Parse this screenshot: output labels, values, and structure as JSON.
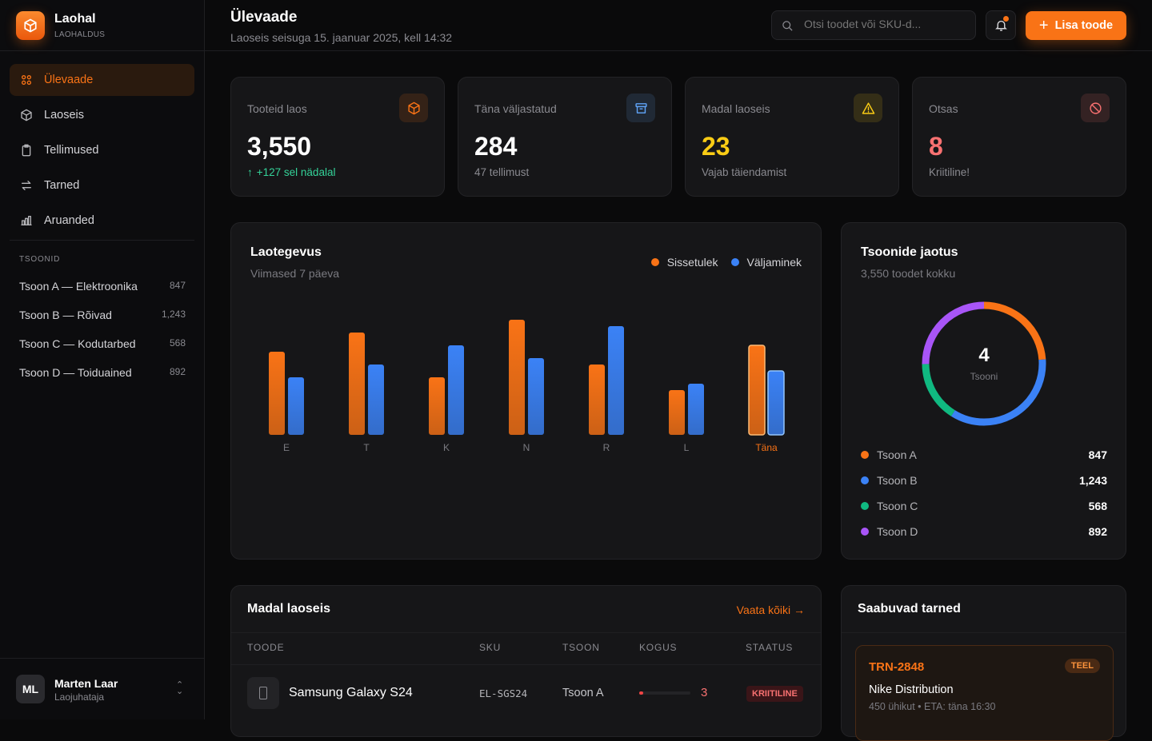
{
  "app": {
    "name": "Laohal",
    "subtitle": "LAOHALDUS"
  },
  "sidebar": {
    "nav": [
      {
        "label": "Ülevaade",
        "icon": "grid-icon",
        "active": true
      },
      {
        "label": "Laoseis",
        "icon": "box-icon"
      },
      {
        "label": "Tellimused",
        "icon": "clipboard-icon"
      },
      {
        "label": "Tarned",
        "icon": "arrows-icon"
      },
      {
        "label": "Aruanded",
        "icon": "bar-chart-icon"
      }
    ],
    "zones_title": "TSOONID",
    "zones": [
      {
        "label": "Tsoon A — Elektroonika",
        "count": "847"
      },
      {
        "label": "Tsoon B — Rõivad",
        "count": "1,243"
      },
      {
        "label": "Tsoon C — Kodutarbed",
        "count": "568"
      },
      {
        "label": "Tsoon D — Toiduained",
        "count": "892"
      }
    ],
    "user": {
      "initials": "ML",
      "name": "Marten Laar",
      "role": "Laojuhataja"
    }
  },
  "header": {
    "title": "Ülevaade",
    "subtitle": "Laoseis seisuga 15. jaanuar 2025, kell 14:32",
    "search_placeholder": "Otsi toodet või SKU-d...",
    "add_button": "Lisa toode"
  },
  "stats": [
    {
      "label": "Tooteid laos",
      "value": "3,550",
      "sub": "+127 sel nädalal",
      "color": "#ffffff",
      "sub_color": "#34d399",
      "icon": "box-icon",
      "icon_color": "#f97316"
    },
    {
      "label": "Täna väljastatud",
      "value": "284",
      "sub": "47 tellimust",
      "color": "#ffffff",
      "icon": "archive-icon",
      "icon_color": "#60a5fa"
    },
    {
      "label": "Madal laoseis",
      "value": "23",
      "sub": "Vajab täiendamist",
      "color": "#facc15",
      "icon": "warning-icon",
      "icon_color": "#facc15"
    },
    {
      "label": "Otsas",
      "value": "8",
      "sub": "Kriitiline!",
      "color": "#f87171",
      "icon": "ban-icon",
      "icon_color": "#f87171"
    }
  ],
  "activity": {
    "title": "Laotegevus",
    "subtitle": "Viimased 7 päeva",
    "chart_data": {
      "type": "bar",
      "categories": [
        "E",
        "T",
        "K",
        "N",
        "R",
        "L",
        "Täna"
      ],
      "series": [
        {
          "name": "Sissetulek",
          "color": "#f97316",
          "values": [
            13,
            16,
            9,
            18,
            11,
            7,
            14
          ]
        },
        {
          "name": "Väljaminek",
          "color": "#3b82f6",
          "values": [
            9,
            11,
            14,
            12,
            17,
            8,
            10
          ]
        }
      ],
      "legend": "top-right",
      "grid": false,
      "highlight_category": "Täna"
    }
  },
  "zones_chart": {
    "title": "Tsoonide jaotus",
    "subtitle": "3,550 toodet kokku",
    "center_value": "4",
    "center_label": "Tsooni",
    "chart_data": {
      "type": "pie",
      "donut": true,
      "labels": [
        "Tsoon A",
        "Tsoon B",
        "Tsoon C",
        "Tsoon D"
      ],
      "values": [
        847,
        1243,
        568,
        892
      ],
      "value_labels": [
        "847",
        "1,243",
        "568",
        "892"
      ],
      "colors": [
        "#f97316",
        "#3b82f6",
        "#10b981",
        "#a855f7"
      ]
    }
  },
  "low_stock": {
    "title": "Madal laoseis",
    "view_all": "Vaata kõiki →",
    "columns": [
      "TOODE",
      "SKU",
      "TSOON",
      "KOGUS",
      "STAATUS"
    ],
    "rows": [
      {
        "product": "Samsung Galaxy S24",
        "sku": "EL-SGS24",
        "zone": "Tsoon A",
        "qty": "3",
        "stock_level": 0.05,
        "status": "KRIITILINE"
      }
    ]
  },
  "deliveries": {
    "title": "Saabuvad tarned",
    "items": [
      {
        "id": "TRN-2848",
        "status": "TEEL",
        "supplier": "Nike Distribution",
        "details": "450 ühikut • ETA: täna 16:30"
      }
    ]
  }
}
